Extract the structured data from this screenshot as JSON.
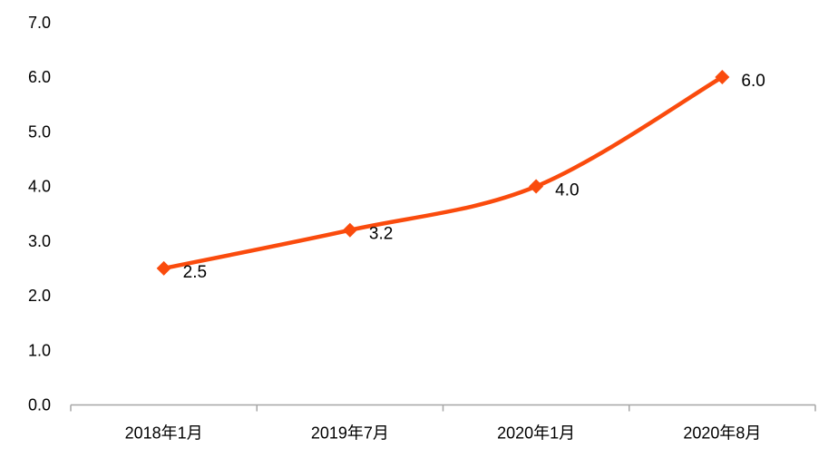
{
  "chart_data": {
    "type": "line",
    "smoothed": true,
    "title": "",
    "xlabel": "",
    "ylabel": "",
    "categories": [
      "2018年1月",
      "2019年7月",
      "2020年1月",
      "2020年8月"
    ],
    "series": [
      {
        "name": "series-1",
        "values": [
          2.5,
          3.2,
          4.0,
          6.0
        ]
      }
    ],
    "data_labels": [
      "2.5",
      "3.2",
      "4.0",
      "6.0"
    ],
    "ytick_labels": [
      "0.0",
      "1.0",
      "2.0",
      "3.0",
      "4.0",
      "5.0",
      "6.0",
      "7.0"
    ],
    "ylim": [
      0,
      7
    ],
    "ytick_step": 1,
    "grid": false,
    "legend": false,
    "marker": "diamond",
    "line_color": "#FA4B0D",
    "marker_color": "#FA4B0D",
    "axis_color": "#A6A6A6",
    "text_color": "#000000"
  }
}
